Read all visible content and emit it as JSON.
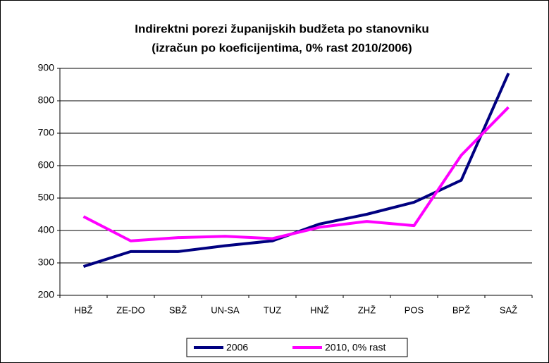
{
  "chart_data": {
    "type": "line",
    "title": [
      "Indirektni porezi županijskih budžeta po stanovniku",
      "(izračun po koeficijentima, 0% rast 2010/2006)"
    ],
    "categories": [
      "HBŽ",
      "ZE-DO",
      "SBŽ",
      "UN-SA",
      "TUZ",
      "HNŽ",
      "ZHŽ",
      "POS",
      "BPŽ",
      "SAŽ"
    ],
    "series": [
      {
        "name": "2006",
        "color": "#000080",
        "values": [
          289,
          335,
          335,
          353,
          368,
          420,
          450,
          487,
          555,
          885
        ]
      },
      {
        "name": "2010, 0% rast",
        "color": "#ff00ff",
        "values": [
          443,
          368,
          378,
          382,
          375,
          410,
          428,
          415,
          632,
          780
        ]
      }
    ],
    "ylim": [
      200,
      900
    ],
    "yticks": [
      200,
      300,
      400,
      500,
      600,
      700,
      800,
      900
    ],
    "grid": true,
    "legend": "bottom"
  }
}
